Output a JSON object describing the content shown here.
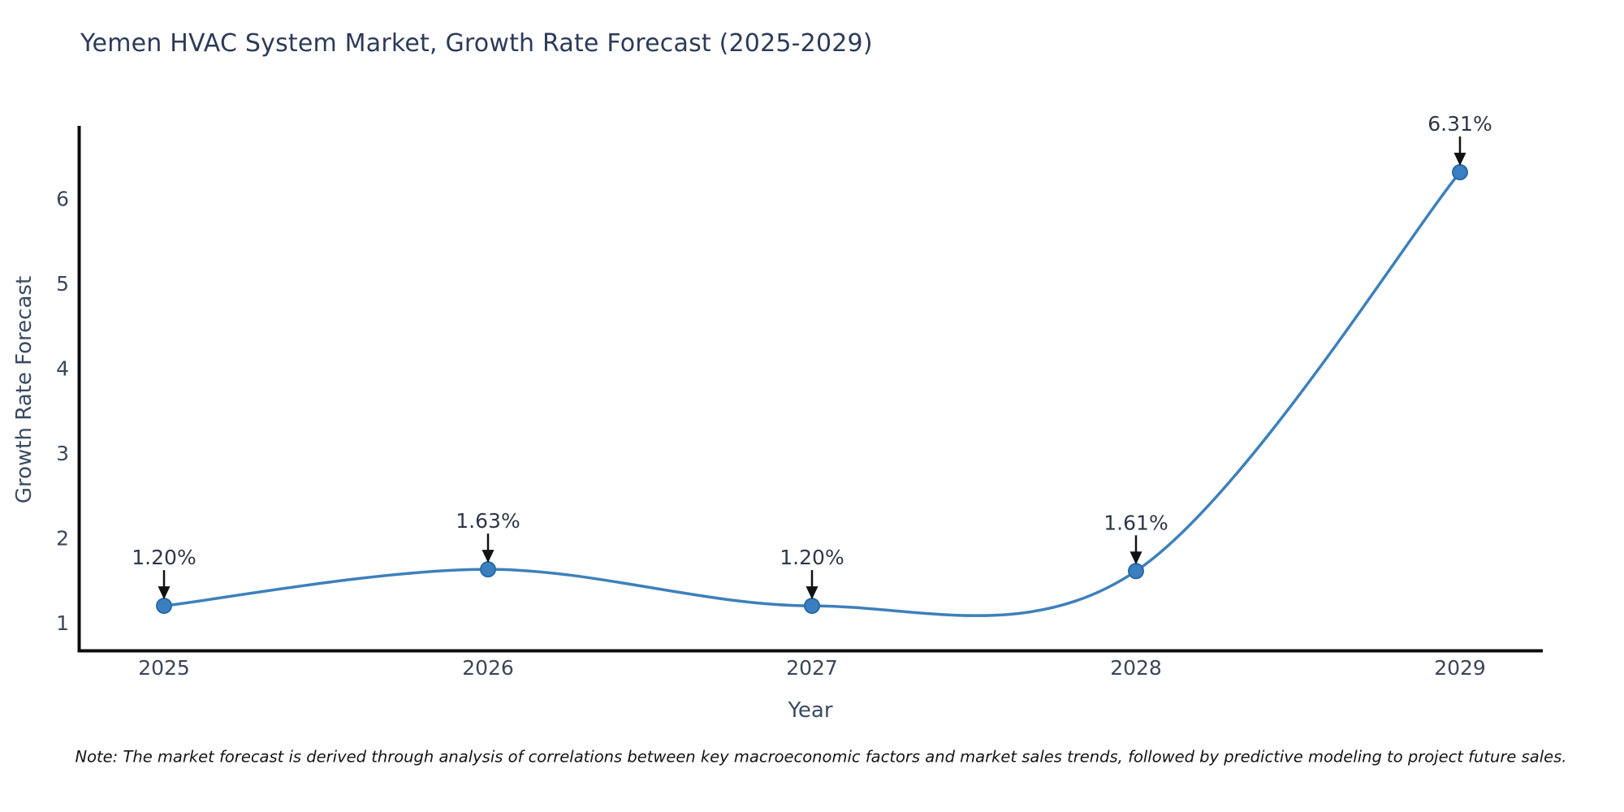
{
  "chart_data": {
    "type": "line",
    "title": "Yemen HVAC System Market, Growth Rate Forecast (2025-2029)",
    "xlabel": "Year",
    "ylabel": "Growth Rate Forecast",
    "note": "Note: The market forecast is derived through analysis of correlations between key macroeconomic factors and market sales trends, followed by predictive modeling to project future sales.",
    "x": [
      2025,
      2026,
      2027,
      2028,
      2029
    ],
    "values": [
      1.2,
      1.63,
      1.2,
      1.61,
      6.31
    ],
    "point_labels": [
      "1.20%",
      "1.63%",
      "1.20%",
      "1.61%",
      "6.31%"
    ],
    "y_ticks": [
      1,
      2,
      3,
      4,
      5,
      6
    ],
    "ylim": [
      0.67,
      6.86
    ],
    "grid": false,
    "legend": "none",
    "line_style": "spline",
    "colors": {
      "line": "#3d80bb",
      "marker_fill": "#3a7fbf",
      "marker_edge": "#2a6aa5",
      "axis_spine": "#0d0d0d",
      "title_text": "#2d3b59",
      "tick_text": "#3c4657",
      "annotation_text": "#2e3747",
      "arrow": "#111111",
      "note_text": "#141414",
      "background": "#ffffff"
    }
  }
}
